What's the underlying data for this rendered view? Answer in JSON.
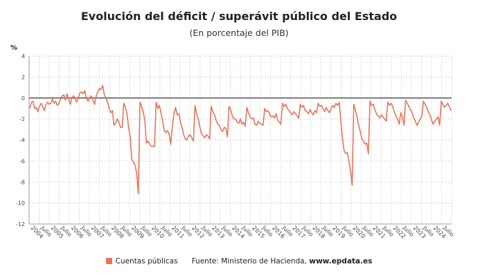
{
  "header": {
    "title": "Evolución del déficit / superávit público del Estado",
    "subtitle": "(En porcentaje del PIB)",
    "unit": "%"
  },
  "legend": {
    "series_label": "Cuentas públicas",
    "source_prefix": "Fuente: Ministerio de Hacienda,",
    "source_site": "www.epdata.es"
  },
  "colors": {
    "line": "#e8735a",
    "zero_line": "#333333",
    "grid": "#cccccc",
    "axis_text": "#444444"
  },
  "chart_data": {
    "type": "line",
    "ylim": [
      -12,
      4
    ],
    "yticks": [
      4,
      2,
      0,
      -2,
      -4,
      -6,
      -8,
      -10,
      -12
    ],
    "grid": true,
    "legend_position": "bottom",
    "x_labels": [
      "2004",
      "Julio",
      "2005",
      "Julio",
      "2006",
      "Julio",
      "2007",
      "Julio",
      "2008",
      "Julio",
      "2009",
      "Julio",
      "2010",
      "Julio",
      "2011",
      "Julio",
      "2012",
      "Julio",
      "2013",
      "Julio",
      "2014",
      "Julio",
      "2015",
      "Julio",
      "2016",
      "Julio",
      "2017",
      "Julio",
      "2018",
      "Julio",
      "2019",
      "Julio",
      "2020",
      "Julio",
      "2021",
      "Julio",
      "2022",
      "Julio",
      "2023",
      "Julio",
      "2024",
      "Julio"
    ],
    "series": [
      {
        "name": "Cuentas públicas",
        "values": [
          -1.0,
          -0.4,
          -0.3,
          -1.0,
          -0.9,
          -1.3,
          -0.8,
          -0.5,
          -0.8,
          -1.2,
          -0.6,
          -0.4,
          -0.6,
          -0.5,
          -0.1,
          -0.5,
          -0.3,
          -0.7,
          -0.5,
          -0.1,
          0.2,
          0.3,
          -0.2,
          0.4,
          -0.1,
          -0.6,
          0.0,
          0.2,
          -0.1,
          -0.4,
          0.0,
          0.5,
          0.6,
          0.4,
          0.7,
          -0.1,
          -0.3,
          0.0,
          0.2,
          -0.2,
          -0.6,
          0.2,
          0.6,
          0.9,
          0.8,
          1.2,
          0.3,
          0.0,
          -0.4,
          -1.0,
          -1.4,
          -1.2,
          -2.6,
          -2.4,
          -2.0,
          -2.3,
          -2.8,
          -2.8,
          -0.5,
          -0.9,
          -1.5,
          -2.8,
          -3.7,
          -5.9,
          -6.1,
          -6.4,
          -7.2,
          -9.1,
          -0.4,
          -0.8,
          -1.3,
          -2.1,
          -4.3,
          -4.1,
          -4.4,
          -4.6,
          -4.6,
          -4.6,
          -0.4,
          -1.0,
          -0.7,
          -1.4,
          -2.2,
          -3.1,
          -3.3,
          -3.1,
          -3.4,
          -4.4,
          -2.7,
          -1.5,
          -0.9,
          -1.6,
          -1.5,
          -2.3,
          -2.8,
          -3.5,
          -3.9,
          -4.0,
          -3.6,
          -3.5,
          -3.8,
          -4.1,
          -0.7,
          -1.5,
          -2.0,
          -2.8,
          -3.4,
          -3.6,
          -3.8,
          -3.5,
          -3.6,
          -3.9,
          -0.8,
          -1.3,
          -1.6,
          -2.1,
          -2.5,
          -2.6,
          -3.0,
          -3.2,
          -2.8,
          -2.9,
          -3.7,
          -0.8,
          -1.1,
          -1.7,
          -2.0,
          -2.0,
          -2.3,
          -2.4,
          -2.0,
          -2.5,
          -2.3,
          -2.7,
          -0.9,
          -1.4,
          -1.8,
          -2.0,
          -1.9,
          -2.5,
          -2.6,
          -2.2,
          -2.4,
          -2.5,
          -2.6,
          -1.0,
          -1.3,
          -1.2,
          -1.5,
          -1.8,
          -1.7,
          -1.9,
          -1.5,
          -2.1,
          -2.3,
          -2.5,
          -0.5,
          -0.8,
          -0.6,
          -1.0,
          -1.2,
          -1.4,
          -1.6,
          -1.3,
          -1.5,
          -1.7,
          -1.9,
          -0.6,
          -0.9,
          -0.7,
          -1.2,
          -1.3,
          -1.5,
          -1.1,
          -1.4,
          -1.6,
          -1.2,
          -1.4,
          -0.5,
          -0.8,
          -0.7,
          -1.0,
          -1.3,
          -0.9,
          -1.2,
          -1.4,
          -1.0,
          -0.7,
          -0.9,
          -0.5,
          -0.7,
          -0.4,
          -2.2,
          -3.8,
          -5.0,
          -5.3,
          -5.2,
          -6.0,
          -7.0,
          -8.3,
          -0.6,
          -1.2,
          -1.8,
          -2.6,
          -3.2,
          -3.9,
          -4.1,
          -4.4,
          -4.3,
          -5.3,
          -0.3,
          -0.7,
          -0.6,
          -1.1,
          -1.5,
          -1.7,
          -1.9,
          -1.6,
          -1.8,
          -2.0,
          -2.2,
          -0.4,
          -0.7,
          -0.5,
          -0.8,
          -1.3,
          -1.7,
          -2.0,
          -2.5,
          -1.4,
          -1.8,
          -2.6,
          -0.2,
          -0.5,
          -0.8,
          -1.1,
          -1.4,
          -1.9,
          -2.2,
          -2.6,
          -2.3,
          -2.0,
          -1.7,
          -0.3,
          -0.6,
          -0.9,
          -1.3,
          -1.6,
          -2.1,
          -2.5,
          -2.2,
          -2.0,
          -1.8,
          -2.6,
          -0.3,
          -0.6,
          -0.9,
          -0.7,
          -0.5,
          -0.8,
          -1.2
        ]
      }
    ]
  }
}
